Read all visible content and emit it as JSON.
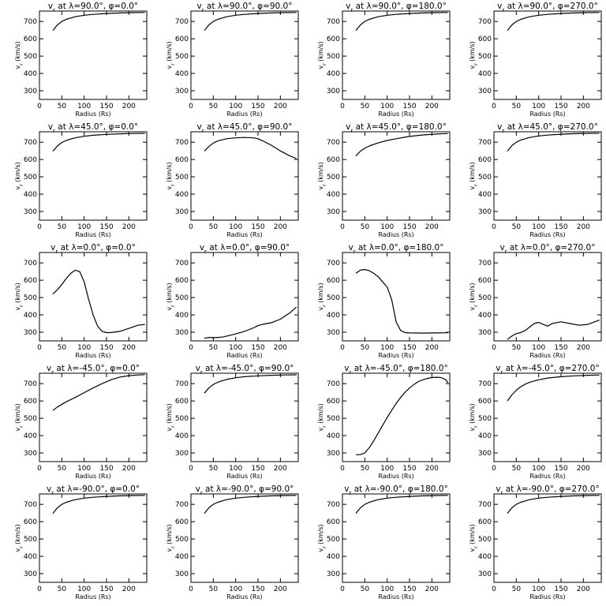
{
  "figure": {
    "axis_labels": {
      "x": "Radius (Rs)",
      "y": "vr (km/s)"
    }
  },
  "chart_data": [
    {
      "type": "line",
      "title": "vr at λ=90.0°, φ=0.0°",
      "lambda": "90.0",
      "phi": "0.0",
      "xlabel": "Radius (Rs)",
      "ylabel": "vr (km/s)",
      "xlim": [
        0,
        240
      ],
      "ylim": [
        250,
        760
      ],
      "xticks": [
        0,
        50,
        100,
        150,
        200
      ],
      "yticks": [
        300,
        400,
        500,
        600,
        700
      ],
      "x": [
        30,
        40,
        50,
        60,
        70,
        80,
        100,
        120,
        150,
        180,
        210,
        236
      ],
      "y": [
        648,
        680,
        700,
        712,
        720,
        727,
        736,
        741,
        746,
        749,
        751,
        752
      ]
    },
    {
      "type": "line",
      "title": "vr at λ=90.0°, φ=90.0°",
      "lambda": "90.0",
      "phi": "90.0",
      "xlabel": "Radius (Rs)",
      "ylabel": "vr (km/s)",
      "xlim": [
        0,
        240
      ],
      "ylim": [
        250,
        760
      ],
      "xticks": [
        0,
        50,
        100,
        150,
        200
      ],
      "yticks": [
        300,
        400,
        500,
        600,
        700
      ],
      "x": [
        30,
        40,
        50,
        60,
        70,
        80,
        100,
        120,
        150,
        180,
        210,
        236
      ],
      "y": [
        648,
        680,
        700,
        712,
        720,
        727,
        736,
        741,
        746,
        749,
        751,
        752
      ]
    },
    {
      "type": "line",
      "title": "vr at λ=90.0°, φ=180.0°",
      "lambda": "90.0",
      "phi": "180.0",
      "xlabel": "Radius (Rs)",
      "ylabel": "vr (km/s)",
      "xlim": [
        0,
        240
      ],
      "ylim": [
        250,
        760
      ],
      "xticks": [
        0,
        50,
        100,
        150,
        200
      ],
      "yticks": [
        300,
        400,
        500,
        600,
        700
      ],
      "x": [
        30,
        40,
        50,
        60,
        70,
        80,
        100,
        120,
        150,
        180,
        210,
        236
      ],
      "y": [
        648,
        680,
        700,
        712,
        720,
        727,
        736,
        741,
        746,
        749,
        751,
        752
      ]
    },
    {
      "type": "line",
      "title": "vr at λ=90.0°, φ=270.0°",
      "lambda": "90.0",
      "phi": "270.0",
      "xlabel": "Radius (Rs)",
      "ylabel": "vr (km/s)",
      "xlim": [
        0,
        240
      ],
      "ylim": [
        250,
        760
      ],
      "xticks": [
        0,
        50,
        100,
        150,
        200
      ],
      "yticks": [
        300,
        400,
        500,
        600,
        700
      ],
      "x": [
        30,
        40,
        50,
        60,
        70,
        80,
        100,
        120,
        150,
        180,
        210,
        236
      ],
      "y": [
        648,
        680,
        700,
        712,
        720,
        727,
        736,
        741,
        746,
        749,
        751,
        752
      ]
    },
    {
      "type": "line",
      "title": "vr at λ=45.0°, φ=0.0°",
      "lambda": "45.0",
      "phi": "0.0",
      "xlabel": "Radius (Rs)",
      "ylabel": "vr (km/s)",
      "xlim": [
        0,
        240
      ],
      "ylim": [
        250,
        760
      ],
      "xticks": [
        0,
        50,
        100,
        150,
        200
      ],
      "yticks": [
        300,
        400,
        500,
        600,
        700
      ],
      "x": [
        30,
        40,
        50,
        60,
        70,
        80,
        100,
        120,
        150,
        180,
        210,
        236
      ],
      "y": [
        648,
        678,
        698,
        710,
        718,
        725,
        734,
        740,
        745,
        748,
        750,
        751
      ]
    },
    {
      "type": "line",
      "title": "vr at λ=45.0°, φ=90.0°",
      "lambda": "45.0",
      "phi": "90.0",
      "xlabel": "Radius (Rs)",
      "ylabel": "vr (km/s)",
      "xlim": [
        0,
        240
      ],
      "ylim": [
        250,
        760
      ],
      "xticks": [
        0,
        50,
        100,
        150,
        200
      ],
      "yticks": [
        300,
        400,
        500,
        600,
        700
      ],
      "x": [
        30,
        40,
        50,
        60,
        80,
        100,
        120,
        140,
        150,
        160,
        180,
        200,
        220,
        236
      ],
      "y": [
        648,
        675,
        695,
        707,
        720,
        725,
        727,
        725,
        720,
        708,
        682,
        650,
        622,
        605
      ]
    },
    {
      "type": "line",
      "title": "vr at λ=45.0°, φ=180.0°",
      "lambda": "45.0",
      "phi": "180.0",
      "xlabel": "Radius (Rs)",
      "ylabel": "vr (km/s)",
      "xlim": [
        0,
        240
      ],
      "ylim": [
        250,
        760
      ],
      "xticks": [
        0,
        50,
        100,
        150,
        200
      ],
      "yticks": [
        300,
        400,
        500,
        600,
        700
      ],
      "x": [
        30,
        40,
        50,
        60,
        80,
        100,
        120,
        150,
        180,
        210,
        236
      ],
      "y": [
        620,
        648,
        665,
        678,
        696,
        710,
        720,
        733,
        742,
        747,
        750
      ]
    },
    {
      "type": "line",
      "title": "vr at λ=45.0°, φ=270.0°",
      "lambda": "45.0",
      "phi": "270.0",
      "xlabel": "Radius (Rs)",
      "ylabel": "vr (km/s)",
      "xlim": [
        0,
        240
      ],
      "ylim": [
        250,
        760
      ],
      "xticks": [
        0,
        50,
        100,
        150,
        200
      ],
      "yticks": [
        300,
        400,
        500,
        600,
        700
      ],
      "x": [
        30,
        40,
        50,
        60,
        70,
        80,
        100,
        120,
        150,
        180,
        210,
        236
      ],
      "y": [
        648,
        680,
        700,
        712,
        720,
        727,
        736,
        741,
        746,
        749,
        751,
        752
      ]
    },
    {
      "type": "line",
      "title": "vr at λ=0.0°, φ=0.0°",
      "lambda": "0.0",
      "phi": "0.0",
      "xlabel": "Radius (Rs)",
      "ylabel": "vr (km/s)",
      "xlim": [
        0,
        240
      ],
      "ylim": [
        250,
        760
      ],
      "xticks": [
        0,
        50,
        100,
        150,
        200
      ],
      "yticks": [
        300,
        400,
        500,
        600,
        700
      ],
      "x": [
        30,
        40,
        50,
        60,
        70,
        80,
        90,
        100,
        110,
        120,
        130,
        140,
        150,
        160,
        180,
        200,
        220,
        236
      ],
      "y": [
        520,
        545,
        575,
        610,
        640,
        658,
        650,
        590,
        490,
        400,
        335,
        305,
        298,
        298,
        305,
        322,
        340,
        345
      ]
    },
    {
      "type": "line",
      "title": "vr at λ=0.0°, φ=90.0°",
      "lambda": "0.0",
      "phi": "90.0",
      "xlabel": "Radius (Rs)",
      "ylabel": "vr (km/s)",
      "xlim": [
        0,
        240
      ],
      "ylim": [
        250,
        760
      ],
      "xticks": [
        0,
        50,
        100,
        150,
        200
      ],
      "yticks": [
        300,
        400,
        500,
        600,
        700
      ],
      "x": [
        30,
        40,
        50,
        60,
        70,
        80,
        100,
        120,
        140,
        150,
        160,
        180,
        200,
        220,
        236
      ],
      "y": [
        265,
        270,
        268,
        270,
        272,
        278,
        290,
        305,
        325,
        338,
        345,
        355,
        375,
        410,
        445
      ]
    },
    {
      "type": "line",
      "title": "vr at λ=0.0°, φ=180.0°",
      "lambda": "0.0",
      "phi": "180.0",
      "xlabel": "Radius (Rs)",
      "ylabel": "vr (km/s)",
      "xlim": [
        0,
        240
      ],
      "ylim": [
        250,
        760
      ],
      "xticks": [
        0,
        50,
        100,
        150,
        200
      ],
      "yticks": [
        300,
        400,
        500,
        600,
        700
      ],
      "x": [
        30,
        40,
        50,
        60,
        70,
        80,
        90,
        100,
        110,
        120,
        130,
        140,
        150,
        180,
        210,
        236
      ],
      "y": [
        640,
        658,
        662,
        655,
        640,
        620,
        590,
        560,
        490,
        360,
        310,
        298,
        296,
        295,
        296,
        297
      ]
    },
    {
      "type": "line",
      "title": "vr at λ=0.0°, φ=270.0°",
      "lambda": "0.0",
      "phi": "270.0",
      "xlabel": "Radius (Rs)",
      "ylabel": "vr (km/s)",
      "xlim": [
        0,
        240
      ],
      "ylim": [
        250,
        760
      ],
      "xticks": [
        0,
        50,
        100,
        150,
        200
      ],
      "yticks": [
        300,
        400,
        500,
        600,
        700
      ],
      "x": [
        30,
        40,
        50,
        60,
        70,
        80,
        90,
        100,
        110,
        120,
        130,
        150,
        170,
        190,
        210,
        236
      ],
      "y": [
        258,
        278,
        292,
        298,
        310,
        330,
        350,
        357,
        345,
        335,
        350,
        360,
        350,
        340,
        345,
        370
      ]
    },
    {
      "type": "line",
      "title": "vr at λ=-45.0°, φ=0.0°",
      "lambda": "-45.0",
      "phi": "0.0",
      "xlabel": "Radius (Rs)",
      "ylabel": "vr (km/s)",
      "xlim": [
        0,
        240
      ],
      "ylim": [
        250,
        760
      ],
      "xticks": [
        0,
        50,
        100,
        150,
        200
      ],
      "yticks": [
        300,
        400,
        500,
        600,
        700
      ],
      "x": [
        30,
        40,
        60,
        80,
        100,
        120,
        140,
        160,
        180,
        200,
        220,
        236
      ],
      "y": [
        545,
        565,
        595,
        620,
        648,
        675,
        700,
        722,
        738,
        746,
        750,
        752
      ]
    },
    {
      "type": "line",
      "title": "vr at λ=-45.0°, φ=90.0°",
      "lambda": "-45.0",
      "phi": "90.0",
      "xlabel": "Radius (Rs)",
      "ylabel": "vr (km/s)",
      "xlim": [
        0,
        240
      ],
      "ylim": [
        250,
        760
      ],
      "xticks": [
        0,
        50,
        100,
        150,
        200
      ],
      "yticks": [
        300,
        400,
        500,
        600,
        700
      ],
      "x": [
        30,
        40,
        50,
        60,
        70,
        80,
        100,
        120,
        150,
        180,
        210,
        236
      ],
      "y": [
        645,
        675,
        695,
        708,
        717,
        724,
        734,
        740,
        745,
        748,
        750,
        751
      ]
    },
    {
      "type": "line",
      "title": "vr at λ=-45.0°, φ=180.0°",
      "lambda": "-45.0",
      "phi": "180.0",
      "xlabel": "Radius (Rs)",
      "ylabel": "vr (km/s)",
      "xlim": [
        0,
        240
      ],
      "ylim": [
        250,
        760
      ],
      "xticks": [
        0,
        50,
        100,
        150,
        200
      ],
      "yticks": [
        300,
        400,
        500,
        600,
        700
      ],
      "x": [
        30,
        40,
        50,
        60,
        70,
        80,
        90,
        100,
        110,
        120,
        130,
        140,
        150,
        160,
        170,
        180,
        190,
        200,
        210,
        220,
        230,
        236
      ],
      "y": [
        290,
        290,
        300,
        330,
        370,
        415,
        460,
        505,
        545,
        585,
        620,
        650,
        675,
        695,
        712,
        722,
        730,
        735,
        737,
        735,
        725,
        705
      ]
    },
    {
      "type": "line",
      "title": "vr at λ=-45.0°, φ=270.0°",
      "lambda": "-45.0",
      "phi": "270.0",
      "xlabel": "Radius (Rs)",
      "ylabel": "vr (km/s)",
      "xlim": [
        0,
        240
      ],
      "ylim": [
        250,
        760
      ],
      "xticks": [
        0,
        50,
        100,
        150,
        200
      ],
      "yticks": [
        300,
        400,
        500,
        600,
        700
      ],
      "x": [
        30,
        40,
        50,
        60,
        70,
        80,
        100,
        120,
        150,
        180,
        210,
        236
      ],
      "y": [
        600,
        635,
        662,
        682,
        697,
        708,
        722,
        732,
        740,
        745,
        748,
        750
      ]
    },
    {
      "type": "line",
      "title": "vr at λ=-90.0°, φ=0.0°",
      "lambda": "-90.0",
      "phi": "0.0",
      "xlabel": "Radius (Rs)",
      "ylabel": "vr (km/s)",
      "xlim": [
        0,
        240
      ],
      "ylim": [
        250,
        760
      ],
      "xticks": [
        0,
        50,
        100,
        150,
        200
      ],
      "yticks": [
        300,
        400,
        500,
        600,
        700
      ],
      "x": [
        30,
        40,
        50,
        60,
        70,
        80,
        100,
        120,
        150,
        180,
        210,
        236
      ],
      "y": [
        648,
        680,
        700,
        712,
        720,
        727,
        736,
        741,
        746,
        749,
        751,
        752
      ]
    },
    {
      "type": "line",
      "title": "vr at λ=-90.0°, φ=90.0°",
      "lambda": "-90.0",
      "phi": "90.0",
      "xlabel": "Radius (Rs)",
      "ylabel": "vr (km/s)",
      "xlim": [
        0,
        240
      ],
      "ylim": [
        250,
        760
      ],
      "xticks": [
        0,
        50,
        100,
        150,
        200
      ],
      "yticks": [
        300,
        400,
        500,
        600,
        700
      ],
      "x": [
        30,
        40,
        50,
        60,
        70,
        80,
        100,
        120,
        150,
        180,
        210,
        236
      ],
      "y": [
        648,
        680,
        700,
        712,
        720,
        727,
        736,
        741,
        746,
        749,
        751,
        752
      ]
    },
    {
      "type": "line",
      "title": "vr at λ=-90.0°, φ=180.0°",
      "lambda": "-90.0",
      "phi": "180.0",
      "xlabel": "Radius (Rs)",
      "ylabel": "vr (km/s)",
      "xlim": [
        0,
        240
      ],
      "ylim": [
        250,
        760
      ],
      "xticks": [
        0,
        50,
        100,
        150,
        200
      ],
      "yticks": [
        300,
        400,
        500,
        600,
        700
      ],
      "x": [
        30,
        40,
        50,
        60,
        70,
        80,
        100,
        120,
        150,
        180,
        210,
        236
      ],
      "y": [
        648,
        680,
        700,
        712,
        720,
        727,
        736,
        741,
        746,
        749,
        751,
        752
      ]
    },
    {
      "type": "line",
      "title": "vr at λ=-90.0°, φ=270.0°",
      "lambda": "-90.0",
      "phi": "270.0",
      "xlabel": "Radius (Rs)",
      "ylabel": "vr (km/s)",
      "xlim": [
        0,
        240
      ],
      "ylim": [
        250,
        760
      ],
      "xticks": [
        0,
        50,
        100,
        150,
        200
      ],
      "yticks": [
        300,
        400,
        500,
        600,
        700
      ],
      "x": [
        30,
        40,
        50,
        60,
        70,
        80,
        100,
        120,
        150,
        180,
        210,
        236
      ],
      "y": [
        648,
        680,
        700,
        712,
        720,
        727,
        736,
        741,
        746,
        749,
        751,
        752
      ]
    }
  ]
}
